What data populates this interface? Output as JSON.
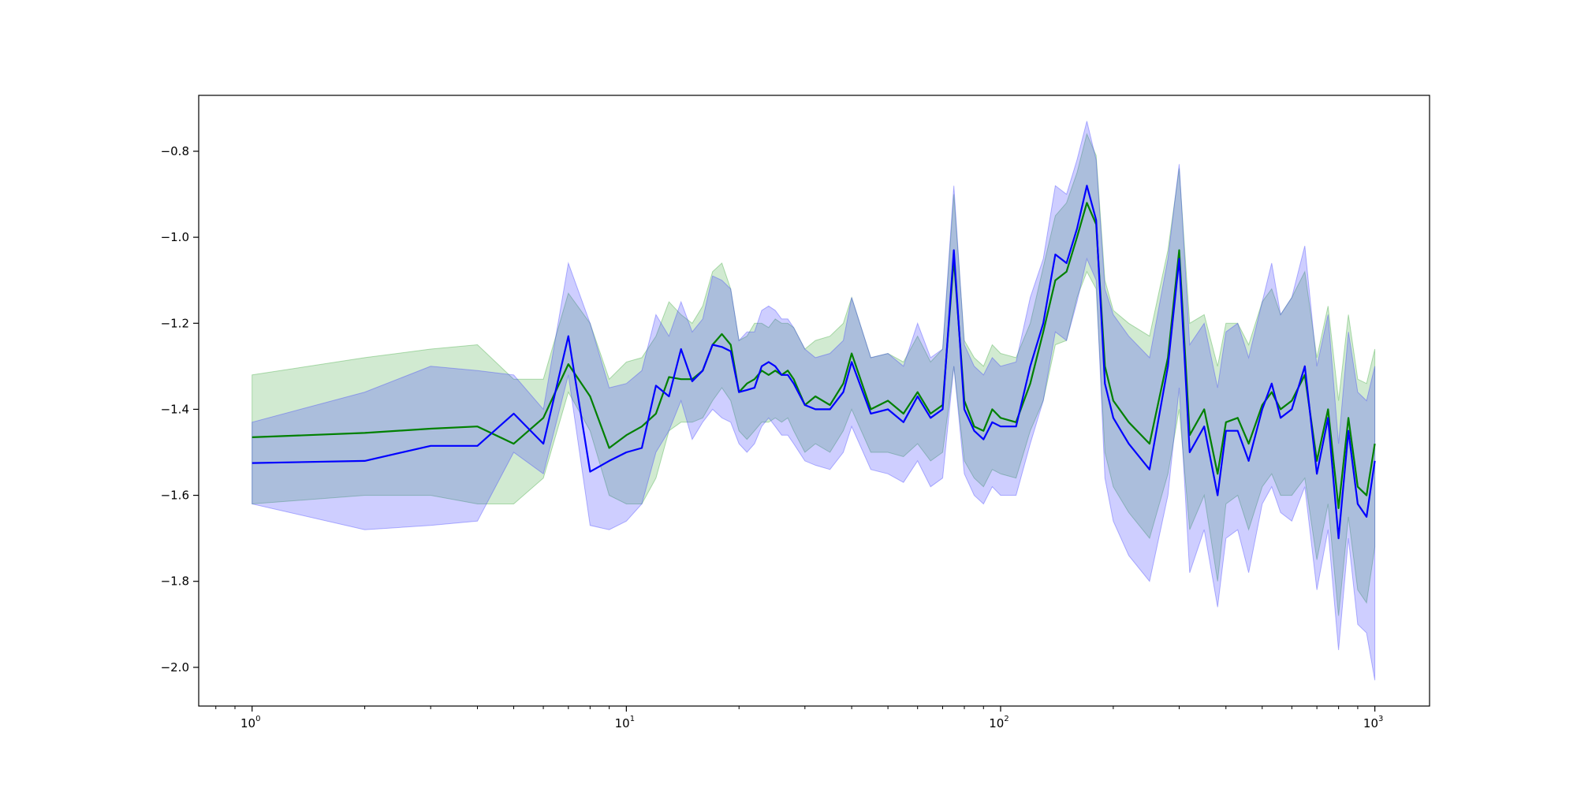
{
  "chart_data": {
    "type": "line",
    "title": "",
    "xlabel": "",
    "ylabel": "",
    "x_scale": "log",
    "xlim": [
      0.72,
      1400
    ],
    "ylim": [
      -2.09,
      -0.67
    ],
    "grid": false,
    "legend": null,
    "x_tick_labels": [
      {
        "value": 1,
        "base": "10",
        "exp": "0"
      },
      {
        "value": 10,
        "base": "10",
        "exp": "1"
      },
      {
        "value": 100,
        "base": "10",
        "exp": "2"
      },
      {
        "value": 1000,
        "base": "10",
        "exp": "3"
      }
    ],
    "y_ticks": [
      -0.8,
      -1.0,
      -1.2,
      -1.4,
      -1.6,
      -1.8,
      -2.0
    ],
    "y_tick_labels": [
      "−0.8",
      "−1.0",
      "−1.2",
      "−1.4",
      "−1.6",
      "−1.8",
      "−2.0"
    ],
    "series": [
      {
        "color": "#008000",
        "band_color": "#2ca02c",
        "band_opacity": 0.22,
        "x": [
          1,
          2,
          3,
          4,
          5,
          6,
          7,
          8,
          9,
          10,
          11,
          12,
          13,
          14,
          15,
          16,
          17,
          18,
          19,
          20,
          21,
          22,
          23,
          24,
          25,
          26,
          27,
          28,
          30,
          32,
          35,
          38,
          40,
          45,
          50,
          55,
          60,
          65,
          70,
          75,
          80,
          85,
          90,
          95,
          100,
          110,
          120,
          130,
          140,
          150,
          160,
          170,
          180,
          190,
          200,
          220,
          250,
          280,
          300,
          320,
          350,
          380,
          400,
          430,
          460,
          500,
          530,
          560,
          600,
          650,
          700,
          750,
          800,
          850,
          900,
          950,
          1000
        ],
        "y": [
          -1.465,
          -1.455,
          -1.445,
          -1.44,
          -1.48,
          -1.42,
          -1.295,
          -1.37,
          -1.49,
          -1.46,
          -1.44,
          -1.41,
          -1.325,
          -1.33,
          -1.33,
          -1.31,
          -1.25,
          -1.225,
          -1.25,
          -1.36,
          -1.34,
          -1.33,
          -1.31,
          -1.32,
          -1.31,
          -1.32,
          -1.31,
          -1.33,
          -1.39,
          -1.37,
          -1.39,
          -1.34,
          -1.27,
          -1.4,
          -1.38,
          -1.41,
          -1.36,
          -1.41,
          -1.39,
          -1.05,
          -1.38,
          -1.44,
          -1.45,
          -1.4,
          -1.42,
          -1.43,
          -1.34,
          -1.22,
          -1.1,
          -1.08,
          -1.0,
          -0.92,
          -0.97,
          -1.3,
          -1.38,
          -1.43,
          -1.48,
          -1.28,
          -1.03,
          -1.46,
          -1.4,
          -1.55,
          -1.43,
          -1.42,
          -1.48,
          -1.39,
          -1.36,
          -1.4,
          -1.38,
          -1.32,
          -1.52,
          -1.4,
          -1.63,
          -1.42,
          -1.58,
          -1.6,
          -1.48
        ],
        "lower": [
          -1.62,
          -1.6,
          -1.6,
          -1.62,
          -1.62,
          -1.56,
          -1.36,
          -1.45,
          -1.6,
          -1.62,
          -1.62,
          -1.56,
          -1.45,
          -1.43,
          -1.43,
          -1.42,
          -1.38,
          -1.35,
          -1.38,
          -1.45,
          -1.47,
          -1.45,
          -1.43,
          -1.43,
          -1.42,
          -1.43,
          -1.42,
          -1.45,
          -1.5,
          -1.48,
          -1.5,
          -1.45,
          -1.4,
          -1.5,
          -1.5,
          -1.51,
          -1.48,
          -1.52,
          -1.5,
          -1.3,
          -1.52,
          -1.56,
          -1.58,
          -1.54,
          -1.55,
          -1.56,
          -1.45,
          -1.38,
          -1.25,
          -1.24,
          -1.14,
          -1.08,
          -1.12,
          -1.5,
          -1.58,
          -1.64,
          -1.7,
          -1.55,
          -1.4,
          -1.68,
          -1.6,
          -1.8,
          -1.62,
          -1.6,
          -1.68,
          -1.58,
          -1.55,
          -1.6,
          -1.6,
          -1.56,
          -1.75,
          -1.62,
          -1.88,
          -1.65,
          -1.82,
          -1.85,
          -1.72
        ],
        "upper": [
          -1.32,
          -1.28,
          -1.26,
          -1.25,
          -1.33,
          -1.33,
          -1.13,
          -1.2,
          -1.33,
          -1.29,
          -1.28,
          -1.23,
          -1.15,
          -1.18,
          -1.2,
          -1.16,
          -1.08,
          -1.06,
          -1.12,
          -1.24,
          -1.23,
          -1.2,
          -1.2,
          -1.21,
          -1.19,
          -1.2,
          -1.2,
          -1.21,
          -1.26,
          -1.24,
          -1.23,
          -1.2,
          -1.14,
          -1.28,
          -1.27,
          -1.29,
          -1.23,
          -1.29,
          -1.26,
          -0.9,
          -1.24,
          -1.28,
          -1.3,
          -1.25,
          -1.27,
          -1.28,
          -1.2,
          -1.07,
          -0.95,
          -0.92,
          -0.85,
          -0.76,
          -0.81,
          -1.1,
          -1.17,
          -1.2,
          -1.23,
          -1.03,
          -0.84,
          -1.2,
          -1.18,
          -1.3,
          -1.2,
          -1.2,
          -1.25,
          -1.15,
          -1.12,
          -1.18,
          -1.14,
          -1.08,
          -1.28,
          -1.16,
          -1.38,
          -1.18,
          -1.33,
          -1.34,
          -1.26
        ]
      },
      {
        "color": "#0000ff",
        "band_color": "#3333ff",
        "band_opacity": 0.24,
        "x": [
          1,
          2,
          3,
          4,
          5,
          6,
          7,
          8,
          9,
          10,
          11,
          12,
          13,
          14,
          15,
          16,
          17,
          18,
          19,
          20,
          21,
          22,
          23,
          24,
          25,
          26,
          27,
          28,
          30,
          32,
          35,
          38,
          40,
          45,
          50,
          55,
          60,
          65,
          70,
          75,
          80,
          85,
          90,
          95,
          100,
          110,
          120,
          130,
          140,
          150,
          160,
          170,
          180,
          190,
          200,
          220,
          250,
          280,
          300,
          320,
          350,
          380,
          400,
          430,
          460,
          500,
          530,
          560,
          600,
          650,
          700,
          750,
          800,
          850,
          900,
          950,
          1000
        ],
        "y": [
          -1.525,
          -1.52,
          -1.485,
          -1.485,
          -1.41,
          -1.48,
          -1.23,
          -1.545,
          -1.52,
          -1.5,
          -1.49,
          -1.345,
          -1.37,
          -1.26,
          -1.335,
          -1.31,
          -1.25,
          -1.255,
          -1.265,
          -1.36,
          -1.355,
          -1.35,
          -1.3,
          -1.29,
          -1.3,
          -1.32,
          -1.32,
          -1.34,
          -1.39,
          -1.4,
          -1.4,
          -1.36,
          -1.29,
          -1.41,
          -1.4,
          -1.43,
          -1.37,
          -1.42,
          -1.4,
          -1.03,
          -1.4,
          -1.45,
          -1.47,
          -1.43,
          -1.44,
          -1.44,
          -1.3,
          -1.2,
          -1.04,
          -1.06,
          -0.98,
          -0.88,
          -0.96,
          -1.34,
          -1.42,
          -1.48,
          -1.54,
          -1.3,
          -1.05,
          -1.5,
          -1.44,
          -1.6,
          -1.45,
          -1.45,
          -1.52,
          -1.4,
          -1.34,
          -1.42,
          -1.4,
          -1.3,
          -1.55,
          -1.42,
          -1.7,
          -1.45,
          -1.62,
          -1.65,
          -1.52
        ],
        "lower": [
          -1.62,
          -1.68,
          -1.67,
          -1.66,
          -1.5,
          -1.55,
          -1.32,
          -1.67,
          -1.68,
          -1.66,
          -1.62,
          -1.5,
          -1.45,
          -1.38,
          -1.47,
          -1.43,
          -1.4,
          -1.42,
          -1.43,
          -1.48,
          -1.5,
          -1.48,
          -1.44,
          -1.42,
          -1.44,
          -1.46,
          -1.46,
          -1.48,
          -1.52,
          -1.53,
          -1.54,
          -1.5,
          -1.44,
          -1.54,
          -1.55,
          -1.57,
          -1.52,
          -1.58,
          -1.56,
          -1.3,
          -1.55,
          -1.6,
          -1.62,
          -1.58,
          -1.6,
          -1.6,
          -1.48,
          -1.38,
          -1.22,
          -1.24,
          -1.15,
          -1.05,
          -1.1,
          -1.56,
          -1.66,
          -1.74,
          -1.8,
          -1.6,
          -1.35,
          -1.78,
          -1.68,
          -1.86,
          -1.7,
          -1.68,
          -1.78,
          -1.62,
          -1.58,
          -1.64,
          -1.66,
          -1.58,
          -1.82,
          -1.68,
          -1.96,
          -1.7,
          -1.9,
          -1.92,
          -2.03
        ],
        "upper": [
          -1.43,
          -1.36,
          -1.3,
          -1.31,
          -1.32,
          -1.4,
          -1.06,
          -1.2,
          -1.35,
          -1.34,
          -1.31,
          -1.18,
          -1.23,
          -1.15,
          -1.22,
          -1.19,
          -1.09,
          -1.1,
          -1.12,
          -1.24,
          -1.22,
          -1.22,
          -1.17,
          -1.16,
          -1.17,
          -1.19,
          -1.19,
          -1.21,
          -1.26,
          -1.28,
          -1.27,
          -1.24,
          -1.14,
          -1.28,
          -1.27,
          -1.3,
          -1.2,
          -1.28,
          -1.26,
          -0.88,
          -1.25,
          -1.3,
          -1.32,
          -1.28,
          -1.3,
          -1.29,
          -1.14,
          -1.05,
          -0.88,
          -0.9,
          -0.82,
          -0.73,
          -0.82,
          -1.12,
          -1.18,
          -1.23,
          -1.28,
          -1.05,
          -0.83,
          -1.25,
          -1.2,
          -1.35,
          -1.22,
          -1.2,
          -1.28,
          -1.15,
          -1.06,
          -1.18,
          -1.14,
          -1.02,
          -1.3,
          -1.18,
          -1.48,
          -1.22,
          -1.36,
          -1.38,
          -1.3
        ]
      }
    ]
  }
}
